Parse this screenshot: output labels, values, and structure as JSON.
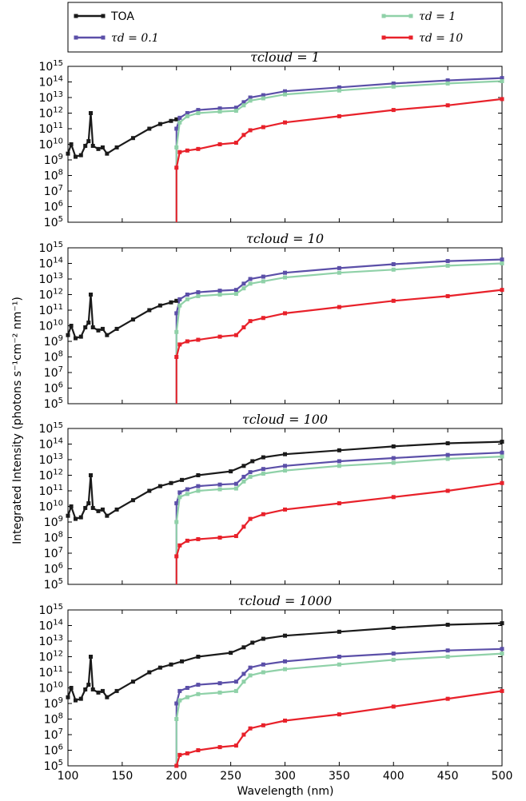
{
  "chart_data": {
    "type": "line",
    "xlabel": "Wavelength (nm)",
    "ylabel": "Integrated Intensity (photons s⁻¹cm⁻² nm⁻¹)",
    "xlim": [
      100,
      500
    ],
    "ylim_exp": [
      5,
      15
    ],
    "yscale": "log",
    "x_ticks": [
      "100",
      "150",
      "200",
      "250",
      "300",
      "350",
      "400",
      "450",
      "500"
    ],
    "legend": {
      "placement": "top",
      "entries": [
        {
          "label": "TOA",
          "color": "#1a1a1a"
        },
        {
          "label": "τd = 0.1",
          "color": "#5b4fa8"
        },
        {
          "label": "τd = 1",
          "color": "#8fd1a8"
        },
        {
          "label": "τd = 10",
          "color": "#e8212a"
        }
      ]
    },
    "series_colors": {
      "toa": "#1a1a1a",
      "td01": "#5b4fa8",
      "td1": "#8fd1a8",
      "td10": "#e8212a"
    },
    "panels": [
      {
        "title": "τcloud = 1",
        "series": {
          "toa": {
            "x": [
              100,
              103,
              107,
              112,
              116,
              119,
              121,
              123,
              128,
              132,
              136,
              145,
              160,
              175,
              185,
              195,
              200
            ],
            "log_y": [
              9.4,
              10.0,
              9.2,
              9.3,
              9.9,
              10.2,
              12.0,
              9.9,
              9.7,
              9.8,
              9.4,
              9.8,
              10.4,
              11.0,
              11.3,
              11.5,
              11.6
            ]
          },
          "td01": {
            "x": [
              200,
              203,
              210,
              220,
              240,
              255,
              262,
              268,
              280,
              300,
              350,
              400,
              450,
              500
            ],
            "log_y": [
              11.0,
              11.7,
              12.0,
              12.2,
              12.3,
              12.35,
              12.7,
              13.0,
              13.15,
              13.4,
              13.65,
              13.9,
              14.1,
              14.25
            ]
          },
          "td1": {
            "x": [
              200,
              203,
              210,
              220,
              240,
              255,
              262,
              268,
              280,
              300,
              350,
              400,
              450,
              500
            ],
            "log_y": [
              9.8,
              11.4,
              11.8,
              12.0,
              12.1,
              12.15,
              12.5,
              12.8,
              12.95,
              13.2,
              13.45,
              13.7,
              13.9,
              14.05
            ]
          },
          "td10": {
            "x": [
              200,
              203,
              210,
              220,
              240,
              255,
              262,
              268,
              280,
              300,
              350,
              400,
              450,
              500
            ],
            "log_y": [
              8.5,
              9.5,
              9.6,
              9.7,
              10.0,
              10.1,
              10.6,
              10.9,
              11.1,
              11.4,
              11.8,
              12.2,
              12.5,
              12.9
            ]
          }
        }
      },
      {
        "title": "τcloud = 10",
        "series": {
          "toa": {
            "x": [
              100,
              103,
              107,
              112,
              116,
              119,
              121,
              123,
              128,
              132,
              136,
              145,
              160,
              175,
              185,
              195,
              200
            ],
            "log_y": [
              9.4,
              10.0,
              9.2,
              9.3,
              9.9,
              10.2,
              12.0,
              9.9,
              9.7,
              9.8,
              9.4,
              9.8,
              10.4,
              11.0,
              11.3,
              11.5,
              11.6
            ]
          },
          "td01": {
            "x": [
              200,
              203,
              210,
              220,
              240,
              255,
              262,
              268,
              280,
              300,
              350,
              400,
              450,
              500
            ],
            "log_y": [
              10.8,
              11.7,
              12.0,
              12.15,
              12.25,
              12.3,
              12.7,
              13.0,
              13.15,
              13.4,
              13.7,
              13.95,
              14.15,
              14.25
            ]
          },
          "td1": {
            "x": [
              200,
              203,
              210,
              220,
              240,
              255,
              262,
              268,
              280,
              300,
              350,
              400,
              450,
              500
            ],
            "log_y": [
              9.6,
              11.3,
              11.7,
              11.9,
              12.0,
              12.05,
              12.4,
              12.7,
              12.85,
              13.1,
              13.4,
              13.6,
              13.85,
              14.0
            ]
          },
          "td10": {
            "x": [
              200,
              203,
              210,
              220,
              240,
              255,
              262,
              268,
              280,
              300,
              350,
              400,
              450,
              500
            ],
            "log_y": [
              8.0,
              8.8,
              9.0,
              9.1,
              9.3,
              9.4,
              9.9,
              10.3,
              10.5,
              10.8,
              11.2,
              11.6,
              11.9,
              12.3
            ]
          }
        }
      },
      {
        "title": "τcloud = 100",
        "series": {
          "toa": {
            "x": [
              100,
              103,
              107,
              112,
              116,
              119,
              121,
              123,
              128,
              132,
              136,
              145,
              160,
              175,
              185,
              195,
              205,
              220,
              250,
              262,
              270,
              280,
              300,
              350,
              400,
              450,
              500
            ],
            "log_y": [
              9.4,
              10.0,
              9.2,
              9.3,
              9.9,
              10.2,
              12.0,
              9.9,
              9.7,
              9.8,
              9.4,
              9.8,
              10.4,
              11.0,
              11.3,
              11.5,
              11.7,
              12.0,
              12.25,
              12.6,
              12.9,
              13.15,
              13.35,
              13.6,
              13.85,
              14.05,
              14.15
            ]
          },
          "td01": {
            "x": [
              200,
              203,
              210,
              220,
              240,
              255,
              262,
              268,
              280,
              300,
              350,
              400,
              450,
              500
            ],
            "log_y": [
              10.2,
              10.9,
              11.1,
              11.3,
              11.4,
              11.45,
              11.9,
              12.2,
              12.4,
              12.6,
              12.9,
              13.1,
              13.3,
              13.45
            ]
          },
          "td1": {
            "x": [
              200,
              203,
              210,
              220,
              240,
              255,
              262,
              268,
              280,
              300,
              350,
              400,
              450,
              500
            ],
            "log_y": [
              9.0,
              10.6,
              10.8,
              11.0,
              11.1,
              11.15,
              11.6,
              11.9,
              12.1,
              12.3,
              12.6,
              12.8,
              13.05,
              13.2
            ]
          },
          "td10": {
            "x": [
              200,
              203,
              210,
              220,
              240,
              255,
              262,
              268,
              280,
              300,
              350,
              400,
              450,
              500
            ],
            "log_y": [
              6.8,
              7.5,
              7.8,
              7.9,
              8.0,
              8.1,
              8.7,
              9.2,
              9.5,
              9.8,
              10.2,
              10.6,
              11.0,
              11.5
            ]
          }
        }
      },
      {
        "title": "τcloud = 1000",
        "series": {
          "toa": {
            "x": [
              100,
              103,
              107,
              112,
              116,
              119,
              121,
              123,
              128,
              132,
              136,
              145,
              160,
              175,
              185,
              195,
              205,
              220,
              250,
              262,
              270,
              280,
              300,
              350,
              400,
              450,
              500
            ],
            "log_y": [
              9.4,
              10.0,
              9.2,
              9.3,
              9.9,
              10.2,
              12.0,
              9.9,
              9.7,
              9.8,
              9.4,
              9.8,
              10.4,
              11.0,
              11.3,
              11.5,
              11.7,
              12.0,
              12.25,
              12.6,
              12.9,
              13.15,
              13.35,
              13.6,
              13.85,
              14.05,
              14.15
            ]
          },
          "td01": {
            "x": [
              200,
              203,
              210,
              220,
              240,
              255,
              262,
              268,
              280,
              300,
              350,
              400,
              450,
              500
            ],
            "log_y": [
              9.0,
              9.8,
              10.0,
              10.2,
              10.3,
              10.4,
              10.9,
              11.3,
              11.5,
              11.7,
              12.0,
              12.2,
              12.4,
              12.5
            ]
          },
          "td1": {
            "x": [
              200,
              203,
              210,
              220,
              240,
              255,
              262,
              268,
              280,
              300,
              350,
              400,
              450,
              500
            ],
            "log_y": [
              8.0,
              9.2,
              9.4,
              9.6,
              9.7,
              9.8,
              10.4,
              10.8,
              11.0,
              11.2,
              11.5,
              11.8,
              12.0,
              12.2
            ]
          },
          "td10": {
            "x": [
              200,
              203,
              210,
              220,
              240,
              255,
              262,
              268,
              280,
              300,
              350,
              400,
              450,
              500
            ],
            "log_y": [
              5.0,
              5.7,
              5.8,
              6.0,
              6.2,
              6.3,
              7.0,
              7.4,
              7.6,
              7.9,
              8.3,
              8.8,
              9.3,
              9.8
            ]
          }
        }
      }
    ]
  }
}
